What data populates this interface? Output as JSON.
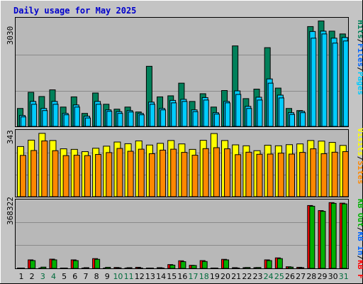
{
  "title": "Daily usage for May 2025",
  "colors": {
    "background": "#c4c4c4",
    "plot_bg": "#b8b8b8",
    "grid": "#8a8a8a",
    "hits": "#00805a",
    "files": "#00ccff",
    "pages": "#00ccff",
    "visits": "#ffff00",
    "sites": "#ff8800",
    "kbin": "#00b000",
    "kbout": "#00b000",
    "kbf": "#ff0000",
    "weekday_label": "#000000",
    "weekend_label": "#006b3c"
  },
  "chart_data": [
    {
      "type": "bar",
      "panel": "hits-files-pages",
      "ymax_label": "3030",
      "ylim": [
        0,
        3030
      ],
      "legend": [
        "Pages",
        "/",
        "Files",
        "/",
        "Hits"
      ],
      "categories": [
        "1",
        "2",
        "3",
        "4",
        "5",
        "6",
        "7",
        "8",
        "9",
        "10",
        "11",
        "12",
        "13",
        "14",
        "15",
        "16",
        "17",
        "18",
        "19",
        "20",
        "21",
        "22",
        "23",
        "24",
        "25",
        "26",
        "27",
        "28",
        "29",
        "30",
        "31"
      ],
      "series": [
        {
          "name": "Hits",
          "values": [
            520,
            980,
            860,
            1050,
            560,
            850,
            380,
            960,
            640,
            500,
            560,
            420,
            1720,
            850,
            880,
            1240,
            720,
            940,
            560,
            1030,
            2300,
            800,
            1070,
            2250,
            1100,
            520,
            460,
            2850,
            3010,
            2720,
            2640
          ]
        },
        {
          "name": "Files",
          "values": [
            320,
            720,
            520,
            720,
            380,
            620,
            300,
            720,
            480,
            430,
            460,
            380,
            700,
            520,
            750,
            780,
            480,
            830,
            400,
            720,
            1020,
            580,
            840,
            1360,
            900,
            400,
            440,
            2710,
            2720,
            2520,
            2540
          ]
        },
        {
          "name": "Pages",
          "values": [
            280,
            640,
            460,
            640,
            340,
            560,
            250,
            640,
            440,
            380,
            420,
            340,
            640,
            480,
            680,
            720,
            430,
            760,
            360,
            680,
            920,
            520,
            760,
            1240,
            820,
            350,
            400,
            2520,
            2640,
            2380,
            2440
          ]
        }
      ]
    },
    {
      "type": "bar",
      "panel": "visits-sites",
      "ymax_label": "343",
      "ylim": [
        0,
        343
      ],
      "legend": [
        "Visits",
        "/",
        "Sites"
      ],
      "categories": [
        "1",
        "2",
        "3",
        "4",
        "5",
        "6",
        "7",
        "8",
        "9",
        "10",
        "11",
        "12",
        "13",
        "14",
        "15",
        "16",
        "17",
        "18",
        "19",
        "20",
        "21",
        "22",
        "23",
        "24",
        "25",
        "26",
        "27",
        "28",
        "29",
        "30",
        "31"
      ],
      "series": [
        {
          "name": "Visits",
          "values": [
            268,
            302,
            338,
            300,
            256,
            253,
            241,
            259,
            270,
            292,
            283,
            298,
            276,
            285,
            300,
            282,
            253,
            301,
            337,
            300,
            277,
            272,
            246,
            275,
            272,
            278,
            282,
            300,
            297,
            290,
            274
          ]
        },
        {
          "name": "Sites",
          "values": [
            221,
            247,
            298,
            246,
            220,
            222,
            220,
            226,
            236,
            258,
            243,
            254,
            230,
            249,
            254,
            237,
            222,
            257,
            262,
            256,
            225,
            238,
            227,
            228,
            233,
            228,
            237,
            256,
            230,
            238,
            241
          ]
        }
      ]
    },
    {
      "type": "bar",
      "panel": "kbf-kbin-kbout",
      "ymax_label": "368322",
      "ylim": [
        0,
        368322
      ],
      "legend": [
        "KB F",
        "/",
        "KB In",
        "/",
        "KB Out"
      ],
      "categories": [
        "1",
        "2",
        "3",
        "4",
        "5",
        "6",
        "7",
        "8",
        "9",
        "10",
        "11",
        "12",
        "13",
        "14",
        "15",
        "16",
        "17",
        "18",
        "19",
        "20",
        "21",
        "22",
        "23",
        "24",
        "25",
        "26",
        "27",
        "28",
        "29",
        "30",
        "31"
      ],
      "series": [
        {
          "name": "KB F",
          "values": [
            2000,
            49000,
            4000,
            53000,
            2000,
            49000,
            3000,
            56000,
            1000,
            7000,
            2000,
            8000,
            1000,
            6000,
            23000,
            44000,
            19000,
            45000,
            4000,
            52000,
            6000,
            6000,
            6000,
            49000,
            60000,
            11000,
            8000,
            349000,
            321000,
            365000,
            362000
          ]
        },
        {
          "name": "KB In",
          "values": [
            1000,
            45000,
            9000,
            49000,
            3000,
            45000,
            6000,
            52000,
            8000,
            5000,
            6000,
            4000,
            3000,
            3000,
            20000,
            39000,
            18000,
            40000,
            2000,
            49000,
            4000,
            7000,
            7000,
            45000,
            56000,
            9000,
            6000,
            345000,
            317000,
            361000,
            358000
          ]
        }
      ]
    }
  ]
}
